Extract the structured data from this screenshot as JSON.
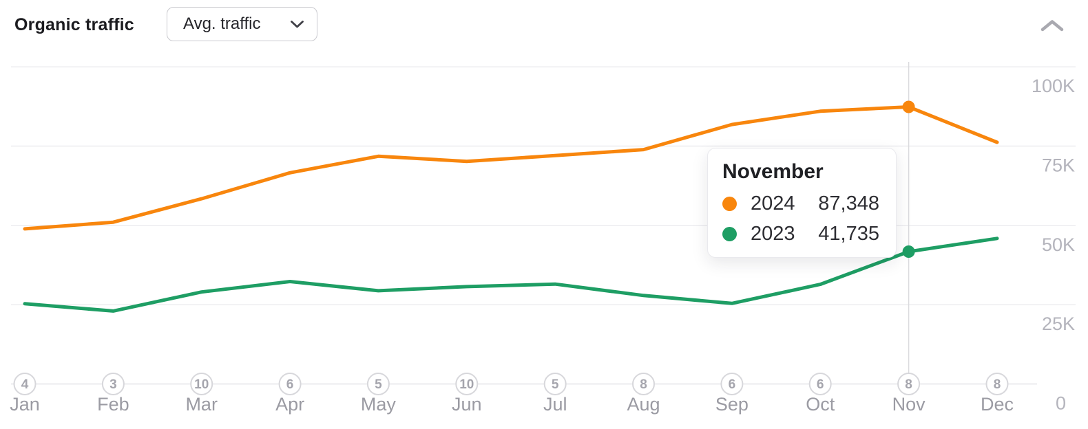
{
  "header": {
    "title": "Organic traffic",
    "metric_dropdown": {
      "label": "Avg. traffic",
      "icon": "chevron-down-icon"
    },
    "collapse": {
      "icon": "chevron-up-icon"
    }
  },
  "chart_data": {
    "type": "line",
    "title": "Organic traffic (Avg. traffic by month)",
    "x_categories": [
      "Jan",
      "Feb",
      "Mar",
      "Apr",
      "May",
      "Jun",
      "Jul",
      "Aug",
      "Sep",
      "Oct",
      "Nov",
      "Dec"
    ],
    "x_day_markers": [
      4,
      3,
      10,
      6,
      5,
      10,
      5,
      8,
      6,
      6,
      8,
      8
    ],
    "y_tick_labels": [
      "100K",
      "75K",
      "50K",
      "25K",
      "0"
    ],
    "y_tick_values": [
      100000,
      75000,
      50000,
      25000,
      0
    ],
    "ylim": [
      0,
      108000
    ],
    "grid": "horizontal",
    "legend_position": "tooltip-only",
    "series": [
      {
        "name": "2024",
        "color": "#f8860d",
        "values": [
          48900,
          51000,
          58400,
          66600,
          71800,
          70200,
          72000,
          73900,
          81800,
          86000,
          87348,
          76200
        ]
      },
      {
        "name": "2023",
        "color": "#1e9e64",
        "values": [
          25300,
          23000,
          29000,
          32300,
          29400,
          30700,
          31500,
          27900,
          25400,
          31400,
          41735,
          45900
        ]
      }
    ],
    "highlight_index": 10,
    "highlight_month": "November"
  },
  "tooltip": {
    "title": "November",
    "rows": [
      {
        "series": "2024",
        "value": "87,348",
        "color": "#f8860d"
      },
      {
        "series": "2023",
        "value": "41,735",
        "color": "#1e9e64"
      }
    ]
  },
  "colors": {
    "accent_orange": "#f8860d",
    "accent_green": "#1e9e64",
    "grid_line": "#ececef",
    "axis_line": "#e3e3e7",
    "crosshair": "#dadade",
    "circle_border": "#d7d7db",
    "circle_text": "#a5a5ad",
    "month_text": "#9b9ba3",
    "y_label_text": "#b4b4bc",
    "title_text": "#1b1b1f"
  }
}
